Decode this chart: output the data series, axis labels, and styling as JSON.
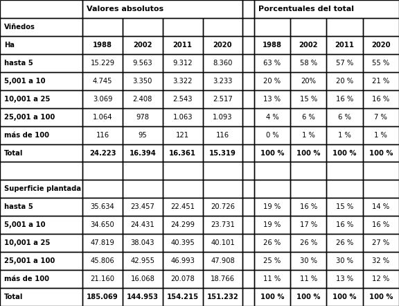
{
  "col_header_main": [
    "Valores absolutos",
    "Porcentuales del total"
  ],
  "col_header_years": [
    "1988",
    "2002",
    "2011",
    "2020"
  ],
  "sections": [
    {
      "section_title": "Viñedos",
      "rows": [
        {
          "label": "hasta 5",
          "abs": [
            "15.229",
            "9.563",
            "9.312",
            "8.360"
          ],
          "pct": [
            "63 %",
            "58 %",
            "57 %",
            "55 %"
          ]
        },
        {
          "label": "5,001 a 10",
          "abs": [
            "4.745",
            "3.350",
            "3.322",
            "3.233"
          ],
          "pct": [
            "20 %",
            "20%",
            "20 %",
            "21 %"
          ]
        },
        {
          "label": "10,001 a 25",
          "abs": [
            "3.069",
            "2.408",
            "2.543",
            "2.517"
          ],
          "pct": [
            "13 %",
            "15 %",
            "16 %",
            "16 %"
          ]
        },
        {
          "label": "25,001 a 100",
          "abs": [
            "1.064",
            "978",
            "1.063",
            "1.093"
          ],
          "pct": [
            "4 %",
            "6 %",
            "6 %",
            "7 %"
          ]
        },
        {
          "label": "más de 100",
          "abs": [
            "116",
            "95",
            "121",
            "116"
          ],
          "pct": [
            "0 %",
            "1 %",
            "1 %",
            "1 %"
          ]
        }
      ],
      "total": {
        "abs": [
          "24.223",
          "16.394",
          "16.361",
          "15.319"
        ],
        "pct": [
          "100 %",
          "100 %",
          "100 %",
          "100 %"
        ]
      }
    },
    {
      "section_title": "Superficie plantada",
      "rows": [
        {
          "label": "hasta 5",
          "abs": [
            "35.634",
            "23.457",
            "22.451",
            "20.726"
          ],
          "pct": [
            "19 %",
            "16 %",
            "15 %",
            "14 %"
          ]
        },
        {
          "label": "5,001 a 10",
          "abs": [
            "34.650",
            "24.431",
            "24.299",
            "23.731"
          ],
          "pct": [
            "19 %",
            "17 %",
            "16 %",
            "16 %"
          ]
        },
        {
          "label": "10,001 a 25",
          "abs": [
            "47.819",
            "38.043",
            "40.395",
            "40.101"
          ],
          "pct": [
            "26 %",
            "26 %",
            "26 %",
            "27 %"
          ]
        },
        {
          "label": "25,001 a 100",
          "abs": [
            "45.806",
            "42.955",
            "46.993",
            "47.908"
          ],
          "pct": [
            "25 %",
            "30 %",
            "30 %",
            "32 %"
          ]
        },
        {
          "label": "más de 100",
          "abs": [
            "21.160",
            "16.068",
            "20.078",
            "18.766"
          ],
          "pct": [
            "11 %",
            "11 %",
            "13 %",
            "12 %"
          ]
        }
      ],
      "total": {
        "abs": [
          "185.069",
          "144.953",
          "154.215",
          "151.232"
        ],
        "pct": [
          "100 %",
          "100 %",
          "100 %",
          "100 %"
        ]
      }
    }
  ],
  "figsize": [
    5.76,
    4.41
  ],
  "dpi": 100,
  "font_size": 7.2,
  "header_font_size": 8.0,
  "lw_border": 1.0
}
